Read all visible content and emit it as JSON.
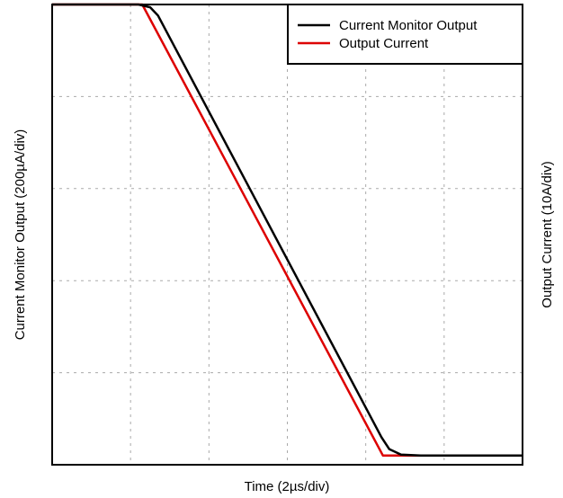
{
  "chart_data": {
    "type": "line",
    "title": "",
    "xlabel": "Time (2µs/div)",
    "ylabel_left": "Current Monitor Output (200µA/div)",
    "ylabel_right": "Output Current (10A/div)",
    "xlim": [
      0,
      6
    ],
    "ylim": [
      0,
      5
    ],
    "grid": true,
    "grid_style": "dashed",
    "x_divisions": 6,
    "y_divisions": 5,
    "legend_position": "top-right",
    "series": [
      {
        "name": "Current Monitor Output",
        "color": "#000000",
        "x": [
          0,
          1.1,
          1.25,
          1.35,
          4.2,
          4.3,
          4.45,
          4.7,
          6
        ],
        "y": [
          5.0,
          5.0,
          4.97,
          4.88,
          0.3,
          0.17,
          0.11,
          0.1,
          0.1
        ]
      },
      {
        "name": "Output Current",
        "color": "#dd0000",
        "x": [
          0,
          1.15,
          4.22,
          6
        ],
        "y": [
          5.0,
          5.0,
          0.1,
          0.1
        ]
      }
    ]
  }
}
